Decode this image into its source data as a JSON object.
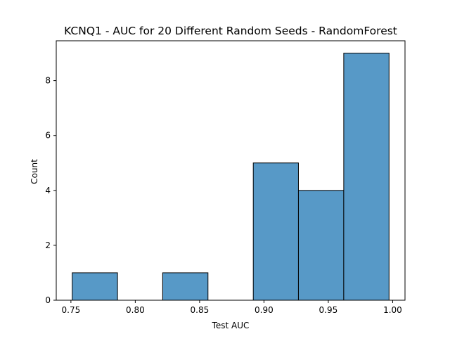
{
  "chart_data": {
    "type": "bar",
    "title": "KCNQ1 - AUC for 20 Different Random Seeds - RandomForest",
    "xlabel": "Test AUC",
    "ylabel": "Count",
    "bins": [
      {
        "x0": 0.751,
        "x1": 0.7862,
        "count": 1
      },
      {
        "x0": 0.7862,
        "x1": 0.8213,
        "count": 0
      },
      {
        "x0": 0.8213,
        "x1": 0.8565,
        "count": 1
      },
      {
        "x0": 0.8565,
        "x1": 0.8917,
        "count": 0
      },
      {
        "x0": 0.8917,
        "x1": 0.9268,
        "count": 5
      },
      {
        "x0": 0.9268,
        "x1": 0.962,
        "count": 4
      },
      {
        "x0": 0.962,
        "x1": 0.9972,
        "count": 9
      }
    ],
    "xlim": [
      0.7386,
      1.0096
    ],
    "ylim": [
      0,
      9.45
    ],
    "xticks": [
      {
        "value": 0.75,
        "label": "0.75"
      },
      {
        "value": 0.8,
        "label": "0.80"
      },
      {
        "value": 0.85,
        "label": "0.85"
      },
      {
        "value": 0.9,
        "label": "0.90"
      },
      {
        "value": 0.95,
        "label": "0.95"
      },
      {
        "value": 1.0,
        "label": "1.00"
      }
    ],
    "yticks": [
      {
        "value": 0,
        "label": "0"
      },
      {
        "value": 2,
        "label": "2"
      },
      {
        "value": 4,
        "label": "4"
      },
      {
        "value": 6,
        "label": "6"
      },
      {
        "value": 8,
        "label": "8"
      }
    ],
    "bar_color": "#5799c7",
    "edge_color": "#000000",
    "grid": false
  }
}
